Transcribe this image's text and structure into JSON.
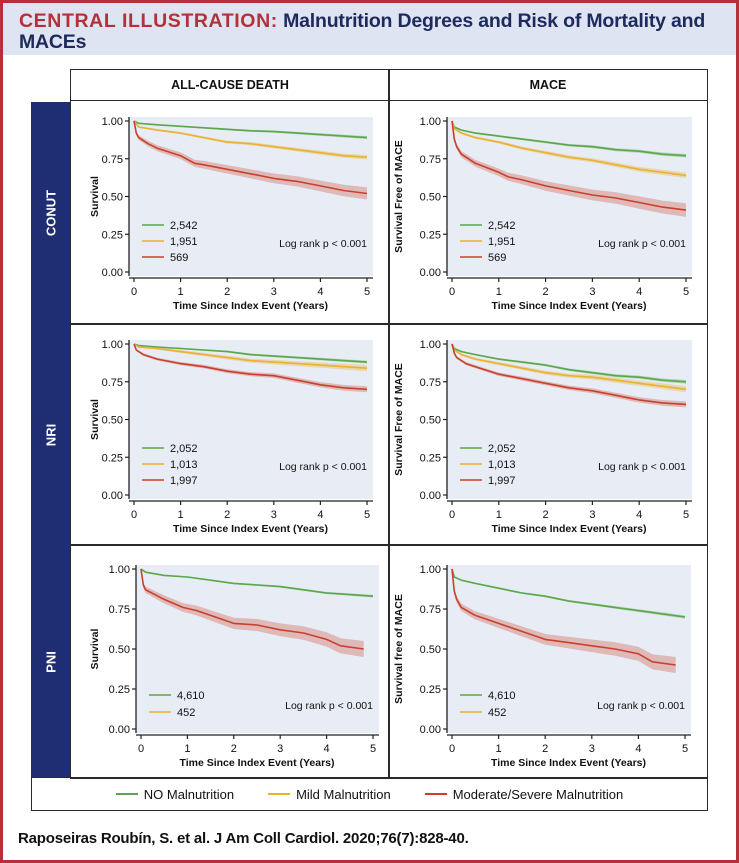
{
  "header": {
    "prefix": "CENTRAL ILLUSTRATION:",
    "title": "Malnutrition Degrees and Risk of Mortality and MACEs"
  },
  "columns": [
    "ALL-CAUSE DEATH",
    "MACE"
  ],
  "rows": [
    "CONUT",
    "NRI",
    "PNI"
  ],
  "legend": [
    {
      "label": "NO Malnutrition",
      "color": "#5aa84a"
    },
    {
      "label": "Mild Malnutrition",
      "color": "#e9b230"
    },
    {
      "label": "Moderate/Severe Malnutrition",
      "color": "#c9402c"
    }
  ],
  "citation": "Raposeiras Roubín, S. et al. J Am Coll Cardiol. 2020;76(7):828-40.",
  "colors": {
    "green": "#5aa84a",
    "yellow": "#e9b230",
    "red": "#c9402c",
    "plot_bg": "#e8ecf5",
    "navy": "#1f2d73",
    "accent_red": "#b5313a"
  },
  "chart_data": [
    {
      "id": "conut-death",
      "type": "line",
      "row": "CONUT",
      "column": "ALL-CAUSE DEATH",
      "xlabel": "Time Since Index Event (Years)",
      "ylabel": "Survival",
      "xlim": [
        0,
        5
      ],
      "ylim": [
        0,
        1
      ],
      "xticks": [
        "0",
        "1",
        "2",
        "3",
        "4",
        "5"
      ],
      "yticks": [
        "0.00",
        "0.25",
        "0.50",
        "0.75",
        "1.00"
      ],
      "annotation": "Log rank p < 0.001",
      "legend_placement": "bottom-left",
      "series": [
        {
          "name": "2,542",
          "color": "green",
          "ci": 0.01,
          "x": [
            0,
            0.1,
            0.5,
            1,
            1.5,
            2,
            2.5,
            3,
            3.5,
            4,
            4.5,
            5
          ],
          "values": [
            1.0,
            0.985,
            0.975,
            0.965,
            0.955,
            0.945,
            0.935,
            0.93,
            0.92,
            0.91,
            0.9,
            0.89
          ]
        },
        {
          "name": "1,951",
          "color": "yellow",
          "ci": 0.015,
          "x": [
            0,
            0.1,
            0.5,
            1,
            1.5,
            2,
            2.5,
            3,
            3.5,
            4,
            4.5,
            5
          ],
          "values": [
            1.0,
            0.96,
            0.94,
            0.92,
            0.89,
            0.86,
            0.85,
            0.83,
            0.81,
            0.79,
            0.77,
            0.76
          ]
        },
        {
          "name": "569",
          "color": "red",
          "ci": 0.04,
          "x": [
            0,
            0.05,
            0.1,
            0.3,
            0.5,
            1,
            1.3,
            1.5,
            2,
            2.5,
            3,
            3.5,
            4,
            4.5,
            5
          ],
          "values": [
            1.0,
            0.92,
            0.89,
            0.85,
            0.82,
            0.77,
            0.72,
            0.71,
            0.68,
            0.65,
            0.62,
            0.6,
            0.57,
            0.54,
            0.52
          ]
        }
      ]
    },
    {
      "id": "conut-mace",
      "type": "line",
      "row": "CONUT",
      "column": "MACE",
      "xlabel": "Time Since Index Event (Years)",
      "ylabel": "Survival Free of MACE",
      "xlim": [
        0,
        5
      ],
      "ylim": [
        0,
        1
      ],
      "xticks": [
        "0",
        "1",
        "2",
        "3",
        "4",
        "5"
      ],
      "yticks": [
        "0.00",
        "0.25",
        "0.50",
        "0.75",
        "1.00"
      ],
      "annotation": "Log rank p < 0.001",
      "legend_placement": "bottom-left",
      "series": [
        {
          "name": "2,542",
          "color": "green",
          "ci": 0.012,
          "x": [
            0,
            0.05,
            0.2,
            0.5,
            1,
            1.5,
            2,
            2.5,
            3,
            3.5,
            4,
            4.5,
            5
          ],
          "values": [
            1.0,
            0.96,
            0.94,
            0.92,
            0.9,
            0.88,
            0.86,
            0.84,
            0.83,
            0.81,
            0.8,
            0.78,
            0.77
          ]
        },
        {
          "name": "1,951",
          "color": "yellow",
          "ci": 0.018,
          "x": [
            0,
            0.05,
            0.2,
            0.5,
            1,
            1.5,
            2,
            2.5,
            3,
            3.5,
            4,
            4.5,
            5
          ],
          "values": [
            1.0,
            0.95,
            0.92,
            0.89,
            0.86,
            0.82,
            0.79,
            0.76,
            0.74,
            0.71,
            0.68,
            0.66,
            0.64
          ]
        },
        {
          "name": "569",
          "color": "red",
          "ci": 0.045,
          "x": [
            0,
            0.05,
            0.1,
            0.2,
            0.5,
            1,
            1.2,
            1.5,
            2,
            2.5,
            3,
            3.5,
            4,
            4.5,
            5
          ],
          "values": [
            1.0,
            0.88,
            0.83,
            0.78,
            0.72,
            0.66,
            0.63,
            0.61,
            0.57,
            0.54,
            0.51,
            0.49,
            0.46,
            0.43,
            0.41
          ]
        }
      ]
    },
    {
      "id": "nri-death",
      "type": "line",
      "row": "NRI",
      "column": "ALL-CAUSE DEATH",
      "xlabel": "Time Since Index Event (Years)",
      "ylabel": "Survival",
      "xlim": [
        0,
        5
      ],
      "ylim": [
        0,
        1
      ],
      "xticks": [
        "0",
        "1",
        "2",
        "3",
        "4",
        "5"
      ],
      "yticks": [
        "0.00",
        "0.25",
        "0.50",
        "0.75",
        "1.00"
      ],
      "annotation": "Log rank p < 0.001",
      "legend_placement": "bottom-left",
      "series": [
        {
          "name": "2,052",
          "color": "green",
          "ci": 0.01,
          "x": [
            0,
            0.1,
            0.5,
            1,
            1.5,
            2,
            2.5,
            3,
            3.5,
            4,
            4.5,
            5
          ],
          "values": [
            1.0,
            0.99,
            0.98,
            0.97,
            0.96,
            0.95,
            0.93,
            0.92,
            0.91,
            0.9,
            0.89,
            0.88
          ]
        },
        {
          "name": "1,013",
          "color": "yellow",
          "ci": 0.02,
          "x": [
            0,
            0.1,
            0.5,
            1,
            1.5,
            2,
            2.5,
            3,
            3.5,
            4,
            4.5,
            5
          ],
          "values": [
            1.0,
            0.98,
            0.97,
            0.95,
            0.93,
            0.91,
            0.89,
            0.88,
            0.87,
            0.86,
            0.85,
            0.84
          ]
        },
        {
          "name": "1,997",
          "color": "red",
          "ci": 0.02,
          "x": [
            0,
            0.05,
            0.2,
            0.5,
            1,
            1.5,
            2,
            2.5,
            3,
            3.5,
            4,
            4.5,
            5
          ],
          "values": [
            1.0,
            0.96,
            0.93,
            0.9,
            0.87,
            0.85,
            0.82,
            0.8,
            0.79,
            0.76,
            0.73,
            0.71,
            0.7
          ]
        }
      ]
    },
    {
      "id": "nri-mace",
      "type": "line",
      "row": "NRI",
      "column": "MACE",
      "xlabel": "Time Since Index Event (Years)",
      "ylabel": "Survival Free of MACE",
      "xlim": [
        0,
        5
      ],
      "ylim": [
        0,
        1
      ],
      "xticks": [
        "0",
        "1",
        "2",
        "3",
        "4",
        "5"
      ],
      "yticks": [
        "0.00",
        "0.25",
        "0.50",
        "0.75",
        "1.00"
      ],
      "annotation": "Log rank p < 0.001",
      "legend_placement": "bottom-left",
      "series": [
        {
          "name": "2,052",
          "color": "green",
          "ci": 0.012,
          "x": [
            0,
            0.05,
            0.2,
            0.5,
            1,
            1.5,
            2,
            2.5,
            3,
            3.5,
            4,
            4.5,
            5
          ],
          "values": [
            1.0,
            0.97,
            0.95,
            0.93,
            0.9,
            0.88,
            0.86,
            0.83,
            0.81,
            0.79,
            0.78,
            0.76,
            0.75
          ]
        },
        {
          "name": "1,013",
          "color": "yellow",
          "ci": 0.02,
          "x": [
            0,
            0.05,
            0.2,
            0.5,
            1,
            1.5,
            2,
            2.5,
            3,
            3.5,
            4,
            4.5,
            5
          ],
          "values": [
            1.0,
            0.96,
            0.93,
            0.9,
            0.87,
            0.84,
            0.81,
            0.79,
            0.78,
            0.76,
            0.74,
            0.72,
            0.7
          ]
        },
        {
          "name": "1,997",
          "color": "red",
          "ci": 0.02,
          "x": [
            0,
            0.05,
            0.1,
            0.3,
            0.5,
            1,
            1.5,
            2,
            2.5,
            3,
            3.5,
            4,
            4.5,
            5
          ],
          "values": [
            1.0,
            0.94,
            0.91,
            0.87,
            0.85,
            0.8,
            0.77,
            0.74,
            0.71,
            0.69,
            0.66,
            0.63,
            0.61,
            0.6
          ]
        }
      ]
    },
    {
      "id": "pni-death",
      "type": "line",
      "row": "PNI",
      "column": "ALL-CAUSE DEATH",
      "xlabel": "Time Since Index Event (Years)",
      "ylabel": "Survival",
      "xlim": [
        0,
        5
      ],
      "ylim": [
        0,
        1
      ],
      "xticks": [
        "0",
        "1",
        "2",
        "3",
        "4",
        "5"
      ],
      "yticks": [
        "0.00",
        "0.25",
        "0.50",
        "0.75",
        "1.00"
      ],
      "annotation": "Log rank p < 0.001",
      "legend_placement": "bottom-left",
      "legend_entries": [
        {
          "name": "4,610",
          "color": "green"
        },
        {
          "name": "452",
          "color": "yellow"
        }
      ],
      "series": [
        {
          "name": "4,610",
          "color": "green",
          "ci": 0.008,
          "x": [
            0,
            0.1,
            0.5,
            1,
            1.5,
            2,
            2.5,
            3,
            3.5,
            4,
            4.5,
            5
          ],
          "values": [
            1.0,
            0.98,
            0.96,
            0.95,
            0.93,
            0.91,
            0.9,
            0.89,
            0.87,
            0.85,
            0.84,
            0.83
          ]
        },
        {
          "name": "452",
          "color": "red",
          "ci": 0.05,
          "x": [
            0,
            0.05,
            0.1,
            0.3,
            0.5,
            0.9,
            1.2,
            1.5,
            2,
            2.5,
            3,
            3.5,
            4,
            4.3,
            4.8
          ],
          "values": [
            1.0,
            0.9,
            0.87,
            0.84,
            0.81,
            0.76,
            0.74,
            0.71,
            0.66,
            0.65,
            0.62,
            0.6,
            0.56,
            0.52,
            0.5
          ]
        }
      ]
    },
    {
      "id": "pni-mace",
      "type": "line",
      "row": "PNI",
      "column": "MACE",
      "xlabel": "Time Since Index Event (Years)",
      "ylabel": "Survival free of MACE",
      "xlim": [
        0,
        5
      ],
      "ylim": [
        0,
        1
      ],
      "xticks": [
        "0",
        "1",
        "2",
        "3",
        "4",
        "5"
      ],
      "yticks": [
        "0.00",
        "0.25",
        "0.50",
        "0.75",
        "1.00"
      ],
      "annotation": "Log rank p < 0.001",
      "legend_placement": "bottom-left",
      "legend_entries": [
        {
          "name": "4,610",
          "color": "green"
        },
        {
          "name": "452",
          "color": "yellow"
        }
      ],
      "series": [
        {
          "name": "4,610",
          "color": "green",
          "ci": 0.01,
          "x": [
            0,
            0.05,
            0.2,
            0.5,
            1,
            1.5,
            2,
            2.5,
            3,
            3.5,
            4,
            4.5,
            5
          ],
          "values": [
            1.0,
            0.95,
            0.93,
            0.91,
            0.88,
            0.85,
            0.83,
            0.8,
            0.78,
            0.76,
            0.74,
            0.72,
            0.7
          ]
        },
        {
          "name": "452",
          "color": "red",
          "ci": 0.05,
          "x": [
            0,
            0.05,
            0.1,
            0.2,
            0.5,
            1,
            1.5,
            2,
            2.5,
            3,
            3.5,
            4,
            4.3,
            4.8
          ],
          "values": [
            1.0,
            0.86,
            0.81,
            0.76,
            0.71,
            0.66,
            0.61,
            0.56,
            0.54,
            0.52,
            0.5,
            0.47,
            0.42,
            0.4
          ]
        }
      ]
    }
  ]
}
